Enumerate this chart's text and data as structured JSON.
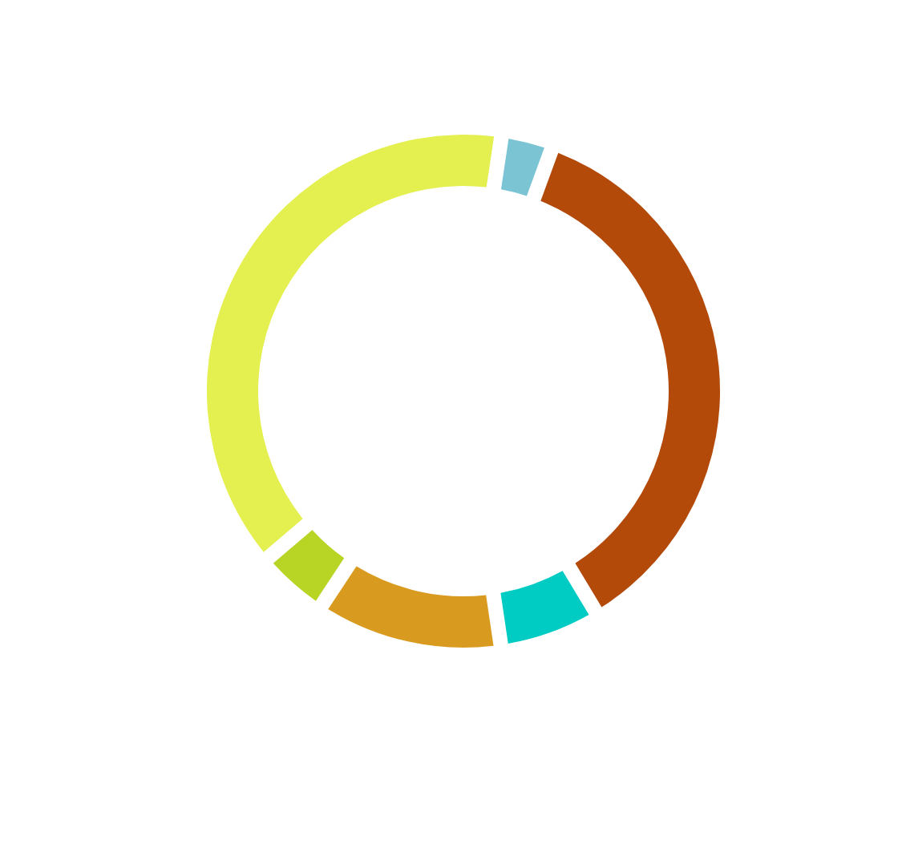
{
  "chart_data": {
    "type": "donut",
    "categories": [
      null,
      null,
      null,
      null,
      null,
      null
    ],
    "values": [
      2.6,
      36.7,
      5.8,
      11.4,
      3.9,
      39.6
    ],
    "colors": [
      "#7ac4d4",
      "#b34a0a",
      "#00ccc4",
      "#d99b1f",
      "#b8d424",
      "#e4ef50"
    ]
  }
}
